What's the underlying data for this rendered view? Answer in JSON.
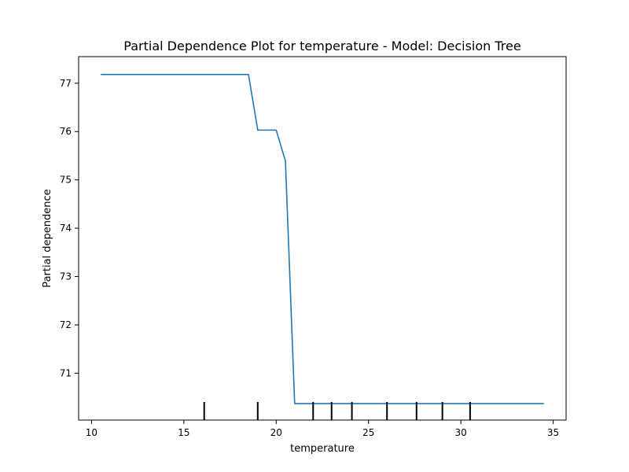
{
  "chart_data": {
    "type": "line",
    "title": "Partial Dependence Plot for temperature - Model: Decision Tree",
    "xlabel": "temperature",
    "ylabel": "Partial dependence",
    "xlim": [
      9.3,
      35.7
    ],
    "ylim": [
      70.03,
      77.55
    ],
    "xticks": [
      10,
      15,
      20,
      25,
      30,
      35
    ],
    "yticks": [
      71,
      72,
      73,
      74,
      75,
      76,
      77
    ],
    "grid": false,
    "series": [
      {
        "color": "#1f77b4",
        "x": [
          10.5,
          18.5,
          19.0,
          20.0,
          20.5,
          21.0,
          34.5
        ],
        "y": [
          77.18,
          77.18,
          76.03,
          76.03,
          75.39,
          70.37,
          70.37
        ]
      }
    ],
    "rug": {
      "x": [
        16.1,
        19.0,
        22.0,
        23.0,
        24.1,
        26.0,
        27.6,
        29.0,
        30.5
      ],
      "color": "#000000"
    }
  }
}
